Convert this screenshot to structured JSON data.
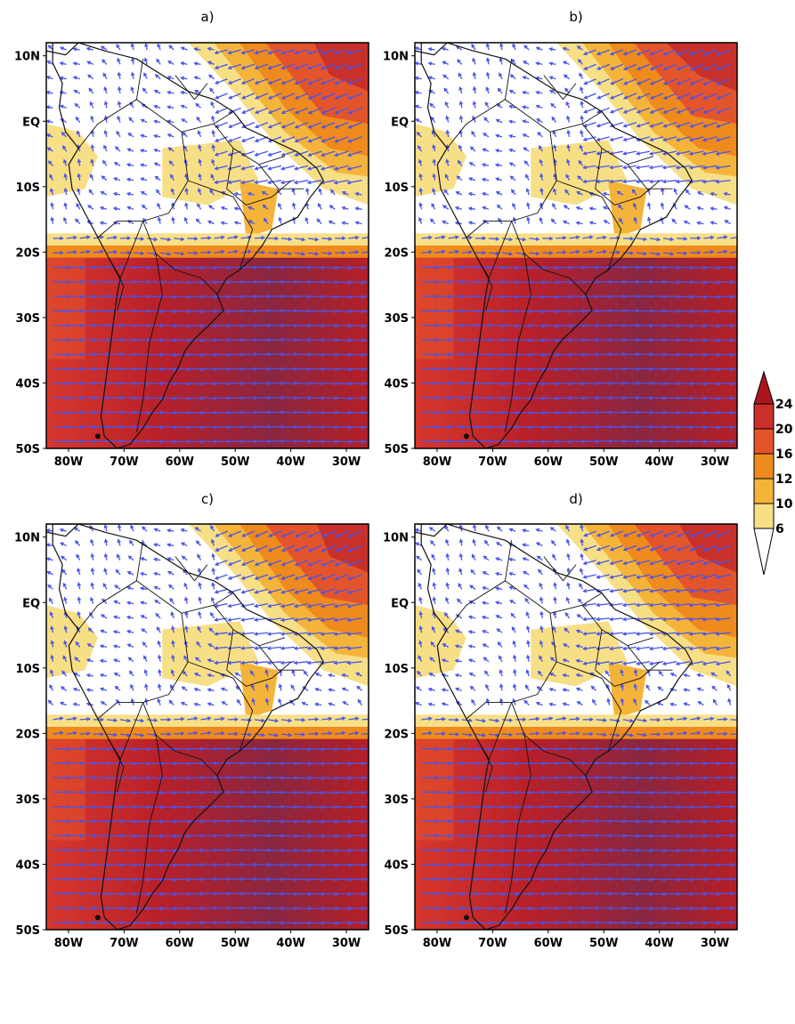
{
  "colors": {
    "c6_10": "#f7df86",
    "c10_12": "#f4b43a",
    "c12_16": "#ef8a1c",
    "c16_20": "#e4542a",
    "c20_24": "#c9302a",
    "c24_plus": "#a9171d",
    "vector": "#4a55e8",
    "coast": "#111111"
  },
  "axes": {
    "lat_labels": [
      "10N",
      "EQ",
      "10S",
      "20S",
      "30S",
      "40S",
      "50S"
    ],
    "lon_labels": [
      "80W",
      "70W",
      "60W",
      "50W",
      "40W",
      "30W"
    ]
  },
  "colorbar": {
    "levels": [
      "24",
      "20",
      "16",
      "12",
      "10",
      "6"
    ]
  },
  "panels": [
    {
      "title": "a)",
      "variant": 0
    },
    {
      "title": "b)",
      "variant": 1
    },
    {
      "title": "c)",
      "variant": 2
    },
    {
      "title": "d)",
      "variant": 3
    }
  ]
}
